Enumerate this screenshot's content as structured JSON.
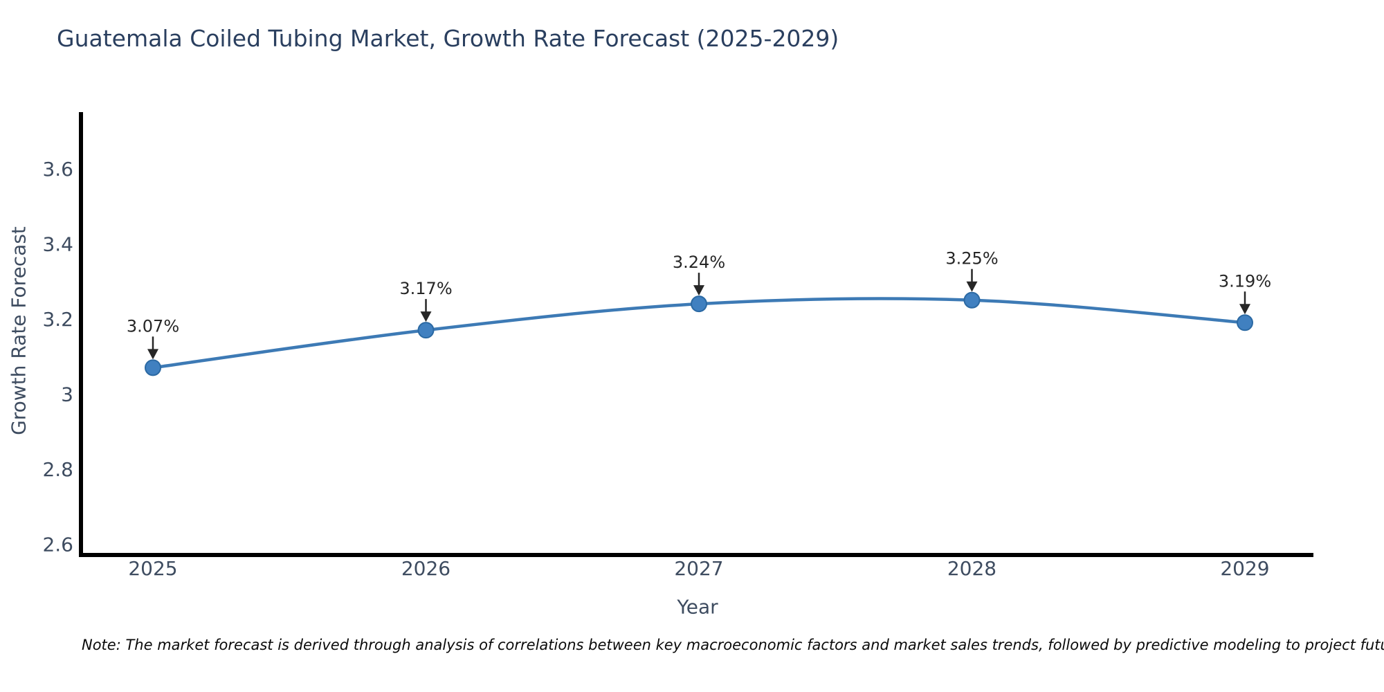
{
  "chart_data": {
    "type": "line",
    "title": "Guatemala Coiled Tubing Market, Growth Rate Forecast (2025-2029)",
    "xlabel": "Year",
    "ylabel": "Growth Rate Forecast",
    "categories": [
      "2025",
      "2026",
      "2027",
      "2028",
      "2029"
    ],
    "values": [
      3.07,
      3.17,
      3.24,
      3.25,
      3.19
    ],
    "point_labels": [
      "3.07%",
      "3.17%",
      "3.24%",
      "3.25%",
      "3.19%"
    ],
    "ytick_values": [
      2.6,
      2.8,
      3.0,
      3.2,
      3.4,
      3.6
    ],
    "ytick_labels": [
      "2.6",
      "2.8",
      "3",
      "3.2",
      "3.4",
      "3.6"
    ],
    "ylim": [
      2.571,
      3.751
    ],
    "grid": false,
    "legend": "none",
    "note": "Note: The market forecast is derived through analysis of correlations between key macroeconomic factors and market sales trends, followed by predictive modeling to project future sales",
    "colors": {
      "line": "#3d7ab5",
      "marker_fill": "#4080c0",
      "marker_stroke": "#2b69a3",
      "title": "#2a3f5f",
      "tick": "#3e4c60",
      "annotation": "#262626",
      "spine": "#000000",
      "background": "#ffffff"
    }
  }
}
